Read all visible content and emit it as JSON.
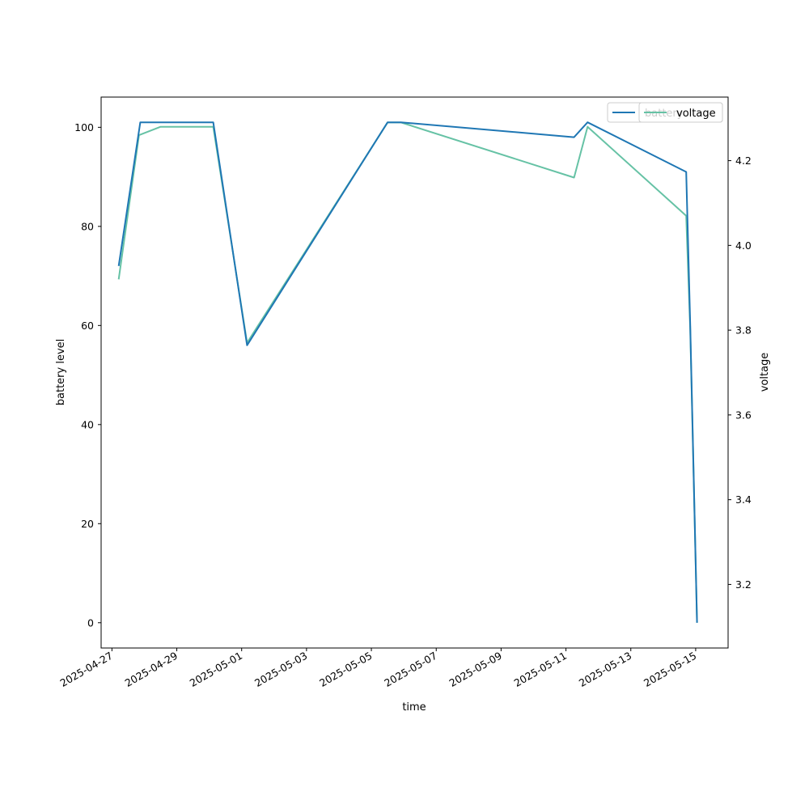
{
  "chart_data": {
    "type": "line",
    "xlabel": "time",
    "ylabel": "battery level",
    "y2label": "voltage",
    "x_type": "date",
    "xlim": [
      "2025-04-26T16:00",
      "2025-05-16T00:00"
    ],
    "ylim": [
      -5.1,
      106.1
    ],
    "y2lim": [
      3.05,
      4.35
    ],
    "x_ticks": [
      "2025-04-27",
      "2025-04-29",
      "2025-05-01",
      "2025-05-03",
      "2025-05-05",
      "2025-05-07",
      "2025-05-09",
      "2025-05-11",
      "2025-05-13",
      "2025-05-15"
    ],
    "y_ticks": [
      0,
      20,
      40,
      60,
      80,
      100
    ],
    "y2_ticks": [
      "3.2",
      "3.4",
      "3.6",
      "3.8",
      "4.0",
      "4.2"
    ],
    "grid": false,
    "legends": [
      {
        "placement": "upper-right",
        "entries": [
          "battery"
        ]
      },
      {
        "placement": "upper-right",
        "entries": [
          "voltage"
        ]
      }
    ],
    "series": [
      {
        "name": "battery",
        "axis": "left",
        "color": "#1f77b4",
        "x": [
          "2025-04-27T05:00",
          "2025-04-27T21:00",
          "2025-04-30T03:00",
          "2025-05-01T04:00",
          "2025-05-05T12:00",
          "2025-05-05T22:00",
          "2025-05-11T06:00",
          "2025-05-11T16:00",
          "2025-05-14T17:00",
          "2025-05-14T20:00",
          "2025-05-15T01:00"
        ],
        "values": [
          72,
          101,
          101,
          56,
          101,
          101,
          98,
          101,
          91,
          60,
          0
        ]
      },
      {
        "name": "voltage",
        "axis": "right",
        "color": "#66c2a5",
        "x": [
          "2025-04-27T05:00",
          "2025-04-27T20:00",
          "2025-04-28T12:00",
          "2025-04-30T03:00",
          "2025-05-01T04:00",
          "2025-05-05T12:00",
          "2025-05-05T22:00",
          "2025-05-11T06:00",
          "2025-05-11T16:00",
          "2025-05-14T17:00",
          "2025-05-14T20:00",
          "2025-05-15T01:00"
        ],
        "values": [
          3.92,
          4.26,
          4.28,
          4.28,
          3.77,
          4.29,
          4.29,
          4.16,
          4.28,
          4.07,
          3.8,
          3.11
        ]
      }
    ]
  }
}
